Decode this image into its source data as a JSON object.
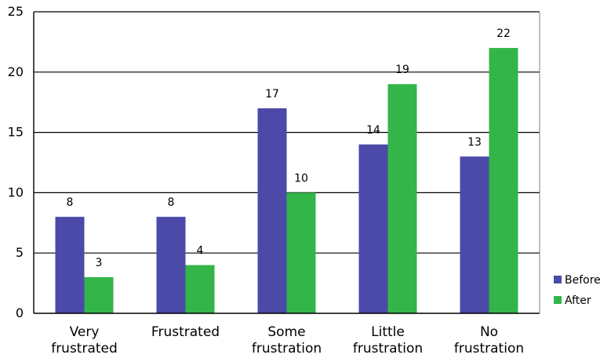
{
  "chart_data": {
    "type": "bar",
    "categories": [
      [
        "Very",
        "frustrated"
      ],
      [
        "Frustrated"
      ],
      [
        "Some",
        "frustration"
      ],
      [
        "Little",
        "frustration"
      ],
      [
        "No",
        "frustration"
      ]
    ],
    "series": [
      {
        "name": "Before",
        "values": [
          8,
          8,
          17,
          14,
          13
        ],
        "color": "#4b4aa8"
      },
      {
        "name": "After",
        "values": [
          3,
          4,
          10,
          19,
          22
        ],
        "color": "#33b54a"
      }
    ],
    "title": "",
    "xlabel": "",
    "ylabel": "",
    "ylim": [
      0,
      25
    ],
    "yticks": [
      0,
      5,
      10,
      15,
      20,
      25
    ],
    "grid": true,
    "legend_position": "right"
  }
}
